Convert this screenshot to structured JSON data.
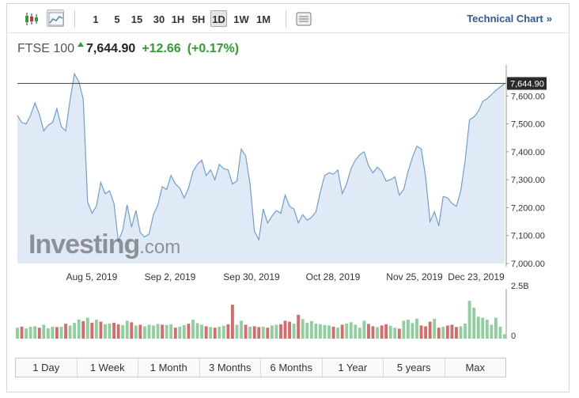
{
  "toolbar": {
    "intervals": [
      "1",
      "5",
      "15",
      "30",
      "1H",
      "5H",
      "1D",
      "1W",
      "1M"
    ],
    "active_interval": "1D",
    "technical_chart_label": "Technical Chart",
    "technical_chart_arrow": "»"
  },
  "quote": {
    "name": "FTSE 100",
    "price": "7,644.90",
    "change": "+12.66",
    "change_pct": "(+0.17%)"
  },
  "watermark": {
    "brand": "Investing",
    "suffix": ".com"
  },
  "ranges": [
    "1 Day",
    "1 Week",
    "1 Month",
    "3 Months",
    "6 Months",
    "1 Year",
    "5 years",
    "Max"
  ],
  "colors": {
    "line": "#6f9fce",
    "area": "#dfeaf6",
    "last_line": "#555555",
    "vol_up": "#8fcf9d",
    "vol_down": "#d86a6a",
    "positive": "#2e9e2e",
    "link": "#2a5c9a"
  },
  "chart_data": {
    "type": "area",
    "title": "FTSE 100",
    "x_labels": [
      "Aug 5, 2019",
      "Sep 2, 2019",
      "Sep 30, 2019",
      "Oct 28, 2019",
      "Nov 25, 2019",
      "Dec 23, 2019"
    ],
    "y_ticks": [
      "7,000.00",
      "7,100.00",
      "7,200.00",
      "7,300.00",
      "7,400.00",
      "7,500.00",
      "7,600.00"
    ],
    "ylim": [
      7000,
      7700
    ],
    "last_value_label": "7,644.90",
    "last_value": 7644.9,
    "volume_axis_labels": [
      "2.5B",
      "0"
    ],
    "volume_max": 2.5,
    "close": [
      7530,
      7505,
      7500,
      7530,
      7575,
      7535,
      7475,
      7495,
      7505,
      7555,
      7490,
      7475,
      7585,
      7680,
      7650,
      7590,
      7220,
      7180,
      7205,
      7290,
      7250,
      7260,
      7215,
      7080,
      7120,
      7210,
      7130,
      7190,
      7110,
      7095,
      7105,
      7175,
      7210,
      7275,
      7265,
      7315,
      7285,
      7270,
      7235,
      7270,
      7330,
      7355,
      7370,
      7315,
      7335,
      7300,
      7355,
      7340,
      7335,
      7285,
      7295,
      7410,
      7385,
      7285,
      7115,
      7085,
      7195,
      7145,
      7170,
      7190,
      7180,
      7245,
      7205,
      7195,
      7145,
      7175,
      7155,
      7165,
      7185,
      7255,
      7315,
      7325,
      7320,
      7335,
      7250,
      7285,
      7340,
      7370,
      7390,
      7400,
      7350,
      7325,
      7345,
      7330,
      7295,
      7300,
      7310,
      7245,
      7265,
      7330,
      7380,
      7420,
      7410,
      7310,
      7150,
      7185,
      7135,
      7240,
      7235,
      7215,
      7205,
      7260,
      7370,
      7515,
      7525,
      7545,
      7580,
      7590,
      7605,
      7620,
      7632,
      7644.9
    ],
    "volume": [
      0.55,
      0.6,
      0.52,
      0.6,
      0.62,
      0.55,
      0.7,
      0.52,
      0.6,
      0.58,
      0.6,
      0.75,
      0.66,
      0.8,
      0.96,
      0.88,
      1.05,
      0.8,
      0.95,
      0.85,
      0.72,
      0.76,
      0.8,
      0.72,
      0.68,
      0.9,
      0.82,
      0.66,
      0.7,
      0.62,
      0.7,
      0.66,
      0.74,
      0.7,
      0.68,
      0.72,
      0.55,
      0.6,
      0.68,
      0.75,
      0.95,
      0.78,
      0.7,
      0.62,
      0.58,
      0.55,
      0.6,
      0.65,
      0.72,
      1.7,
      0.7,
      0.9,
      0.7,
      0.6,
      0.62,
      0.58,
      0.6,
      0.55,
      0.66,
      0.7,
      0.72,
      0.9,
      0.85,
      0.75,
      1.2,
      0.98,
      0.8,
      0.88,
      0.75,
      0.72,
      0.68,
      0.66,
      0.6,
      0.55,
      0.7,
      0.76,
      0.82,
      0.7,
      0.55,
      0.9,
      0.74,
      0.62,
      0.58,
      0.66,
      0.72,
      0.65,
      0.55,
      0.5,
      0.9,
      0.95,
      0.78,
      1.0,
      0.66,
      0.62,
      0.85,
      1.0,
      0.55,
      0.6,
      0.66,
      0.7,
      0.58,
      0.62,
      0.75,
      1.9,
      1.55,
      1.1,
      1.05,
      0.95,
      0.7,
      1.05,
      0.6,
      0.22
    ],
    "volume_up": [
      1,
      0,
      1,
      1,
      1,
      0,
      1,
      1,
      1,
      0,
      1,
      0,
      1,
      1,
      1,
      0,
      1,
      0,
      1,
      0,
      1,
      1,
      0,
      0,
      1,
      1,
      0,
      1,
      0,
      1,
      1,
      1,
      1,
      0,
      1,
      1,
      0,
      1,
      1,
      0,
      1,
      1,
      1,
      0,
      1,
      0,
      1,
      1,
      0,
      0,
      1,
      1,
      0,
      1,
      0,
      0,
      1,
      0,
      1,
      1,
      0,
      0,
      0,
      1,
      0,
      1,
      1,
      1,
      1,
      1,
      1,
      1,
      0,
      1,
      0,
      1,
      1,
      1,
      1,
      1,
      0,
      0,
      1,
      0,
      0,
      1,
      1,
      0,
      1,
      1,
      1,
      1,
      0,
      0,
      0,
      1,
      0,
      1,
      0,
      0,
      0,
      1,
      1,
      1,
      1,
      1,
      1,
      1,
      1,
      1,
      1,
      1
    ]
  }
}
